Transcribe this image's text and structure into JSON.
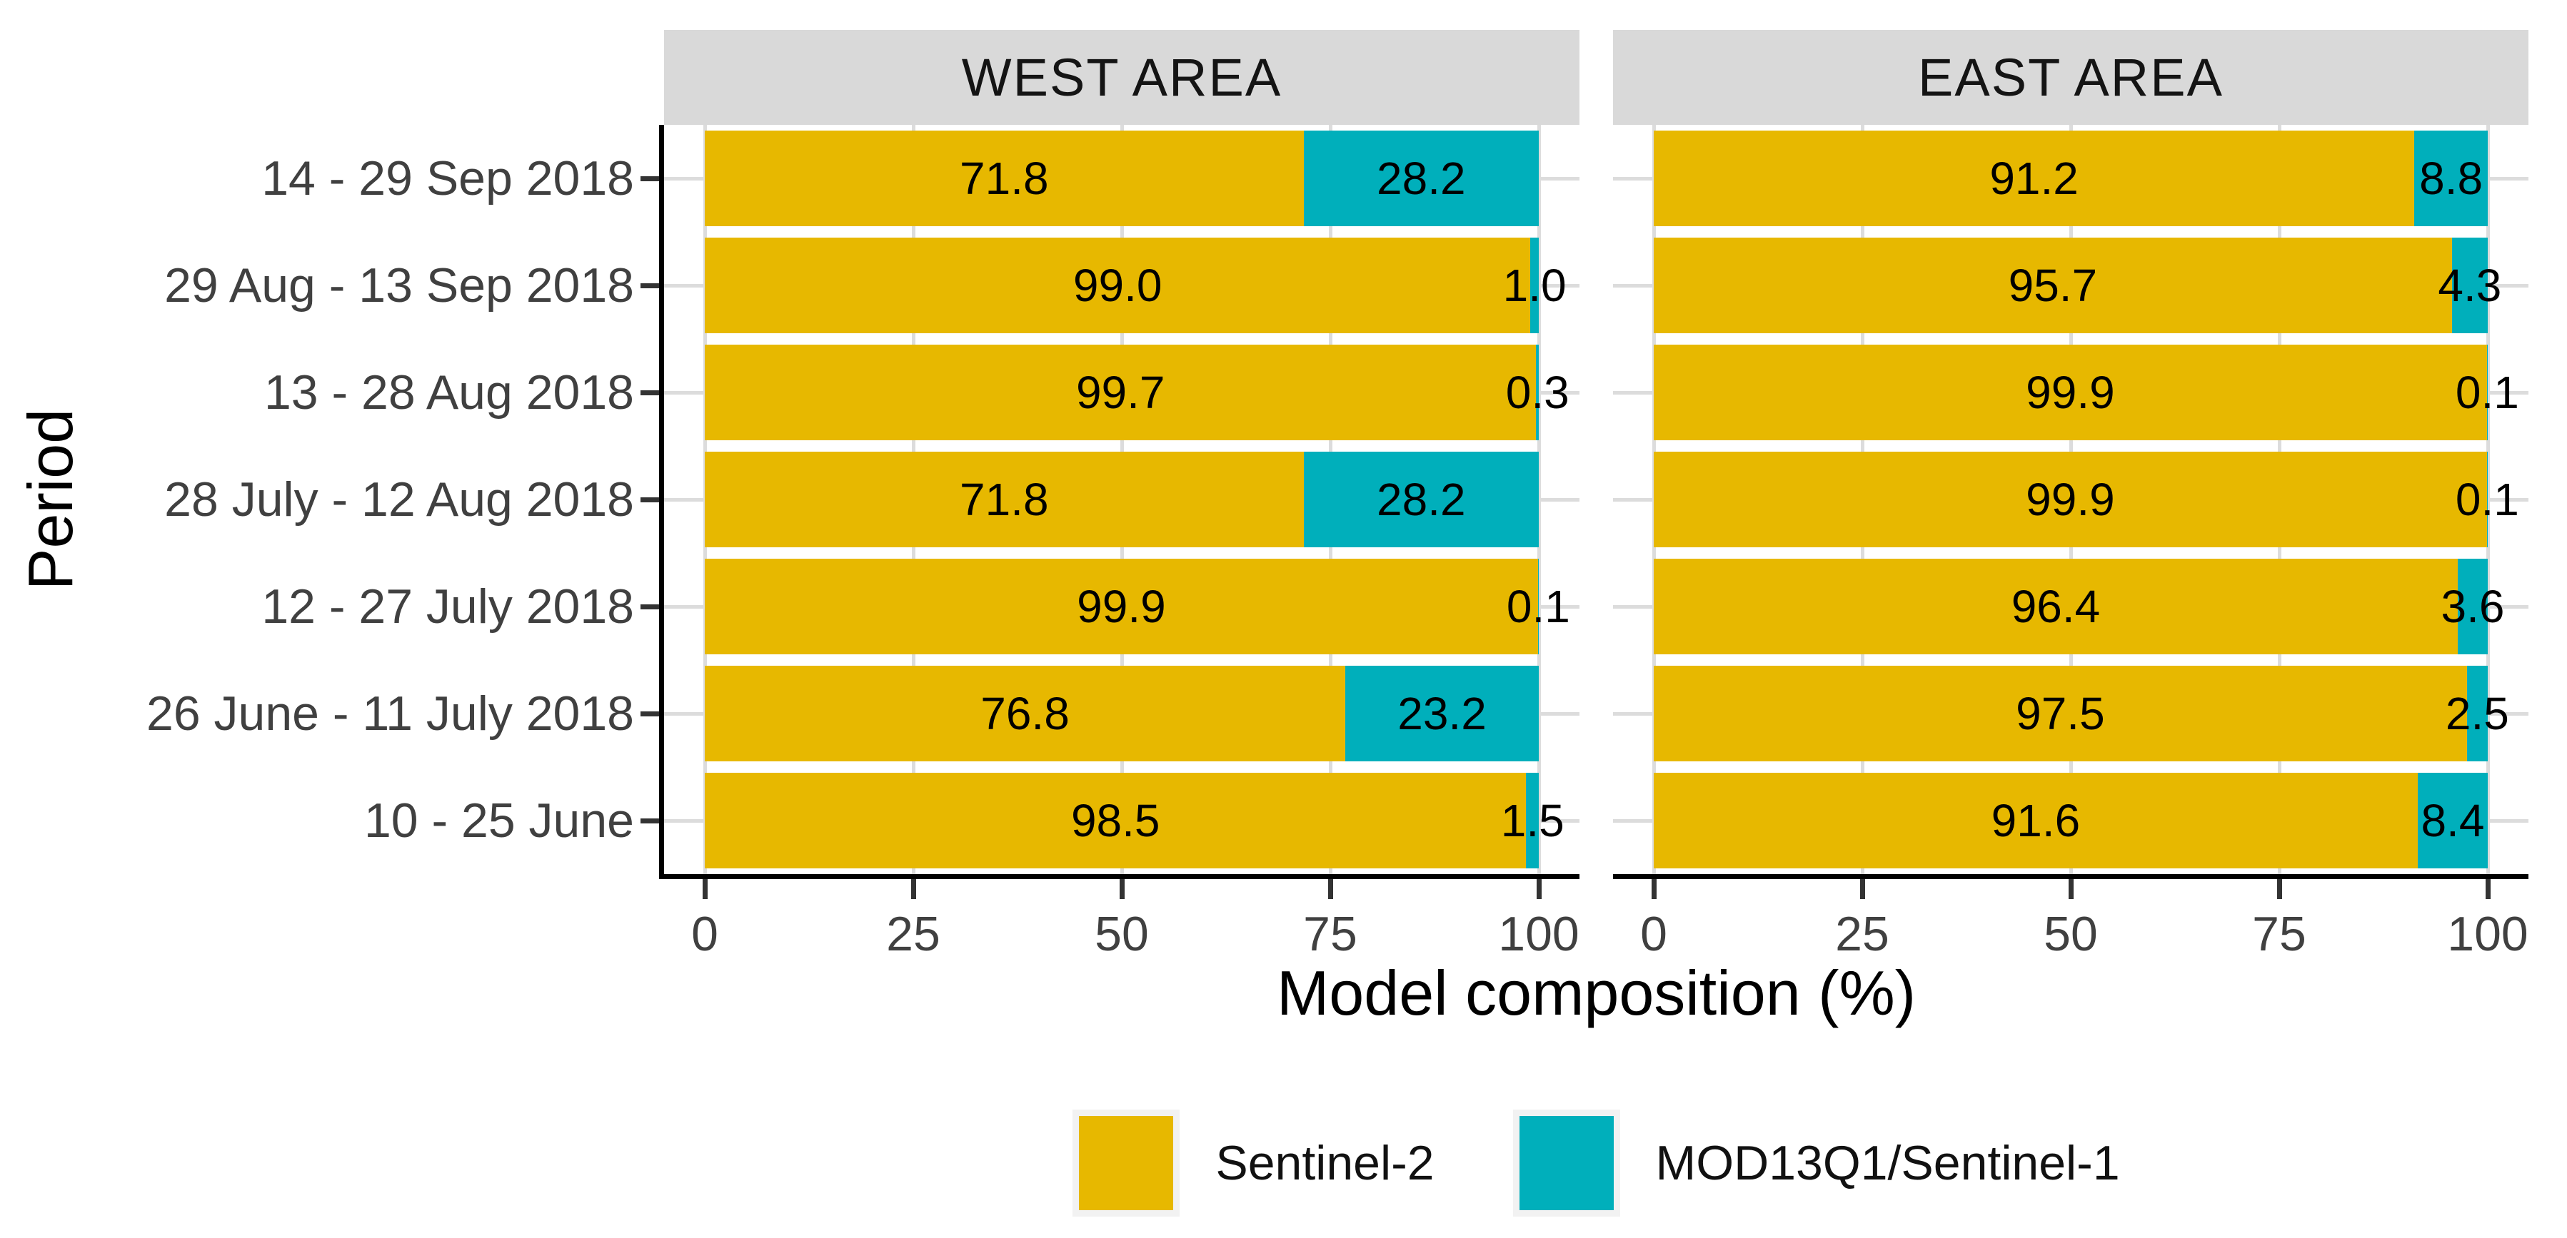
{
  "chart_data": {
    "type": "bar",
    "subtype": "horizontal-stacked-faceted",
    "xlabel": "Model composition (%)",
    "ylabel": "Period",
    "xlim": [
      0,
      100
    ],
    "x_ticks": [
      0,
      25,
      50,
      75,
      100
    ],
    "grid": true,
    "legend_position": "bottom",
    "categories": [
      "14 - 29 Sep 2018",
      "29 Aug - 13 Sep 2018",
      "13 - 28 Aug 2018",
      "28 July - 12 Aug 2018",
      "12 - 27 July 2018",
      "26 June - 11 July 2018",
      "10 - 25 June"
    ],
    "series": [
      {
        "name": "Sentinel-2",
        "color": "#E7B800"
      },
      {
        "name": "MOD13Q1/Sentinel-1",
        "color": "#00AFBB"
      }
    ],
    "facets": [
      {
        "label": "WEST AREA",
        "values": [
          [
            71.8,
            28.2
          ],
          [
            99.0,
            1.0
          ],
          [
            99.7,
            0.3
          ],
          [
            71.8,
            28.2
          ],
          [
            99.9,
            0.1
          ],
          [
            76.8,
            23.2
          ],
          [
            98.5,
            1.5
          ]
        ]
      },
      {
        "label": "EAST AREA",
        "values": [
          [
            91.2,
            8.8
          ],
          [
            95.7,
            4.3
          ],
          [
            99.9,
            0.1
          ],
          [
            99.9,
            0.1
          ],
          [
            96.4,
            3.6
          ],
          [
            97.5,
            2.5
          ],
          [
            91.6,
            8.4
          ]
        ]
      }
    ],
    "colors": {
      "strip_background": "#D9D9D9",
      "gridline": "#DCDCDC",
      "axis_line": "#000000",
      "axis_text": "#404040",
      "bar_label_text": "#000000"
    }
  }
}
